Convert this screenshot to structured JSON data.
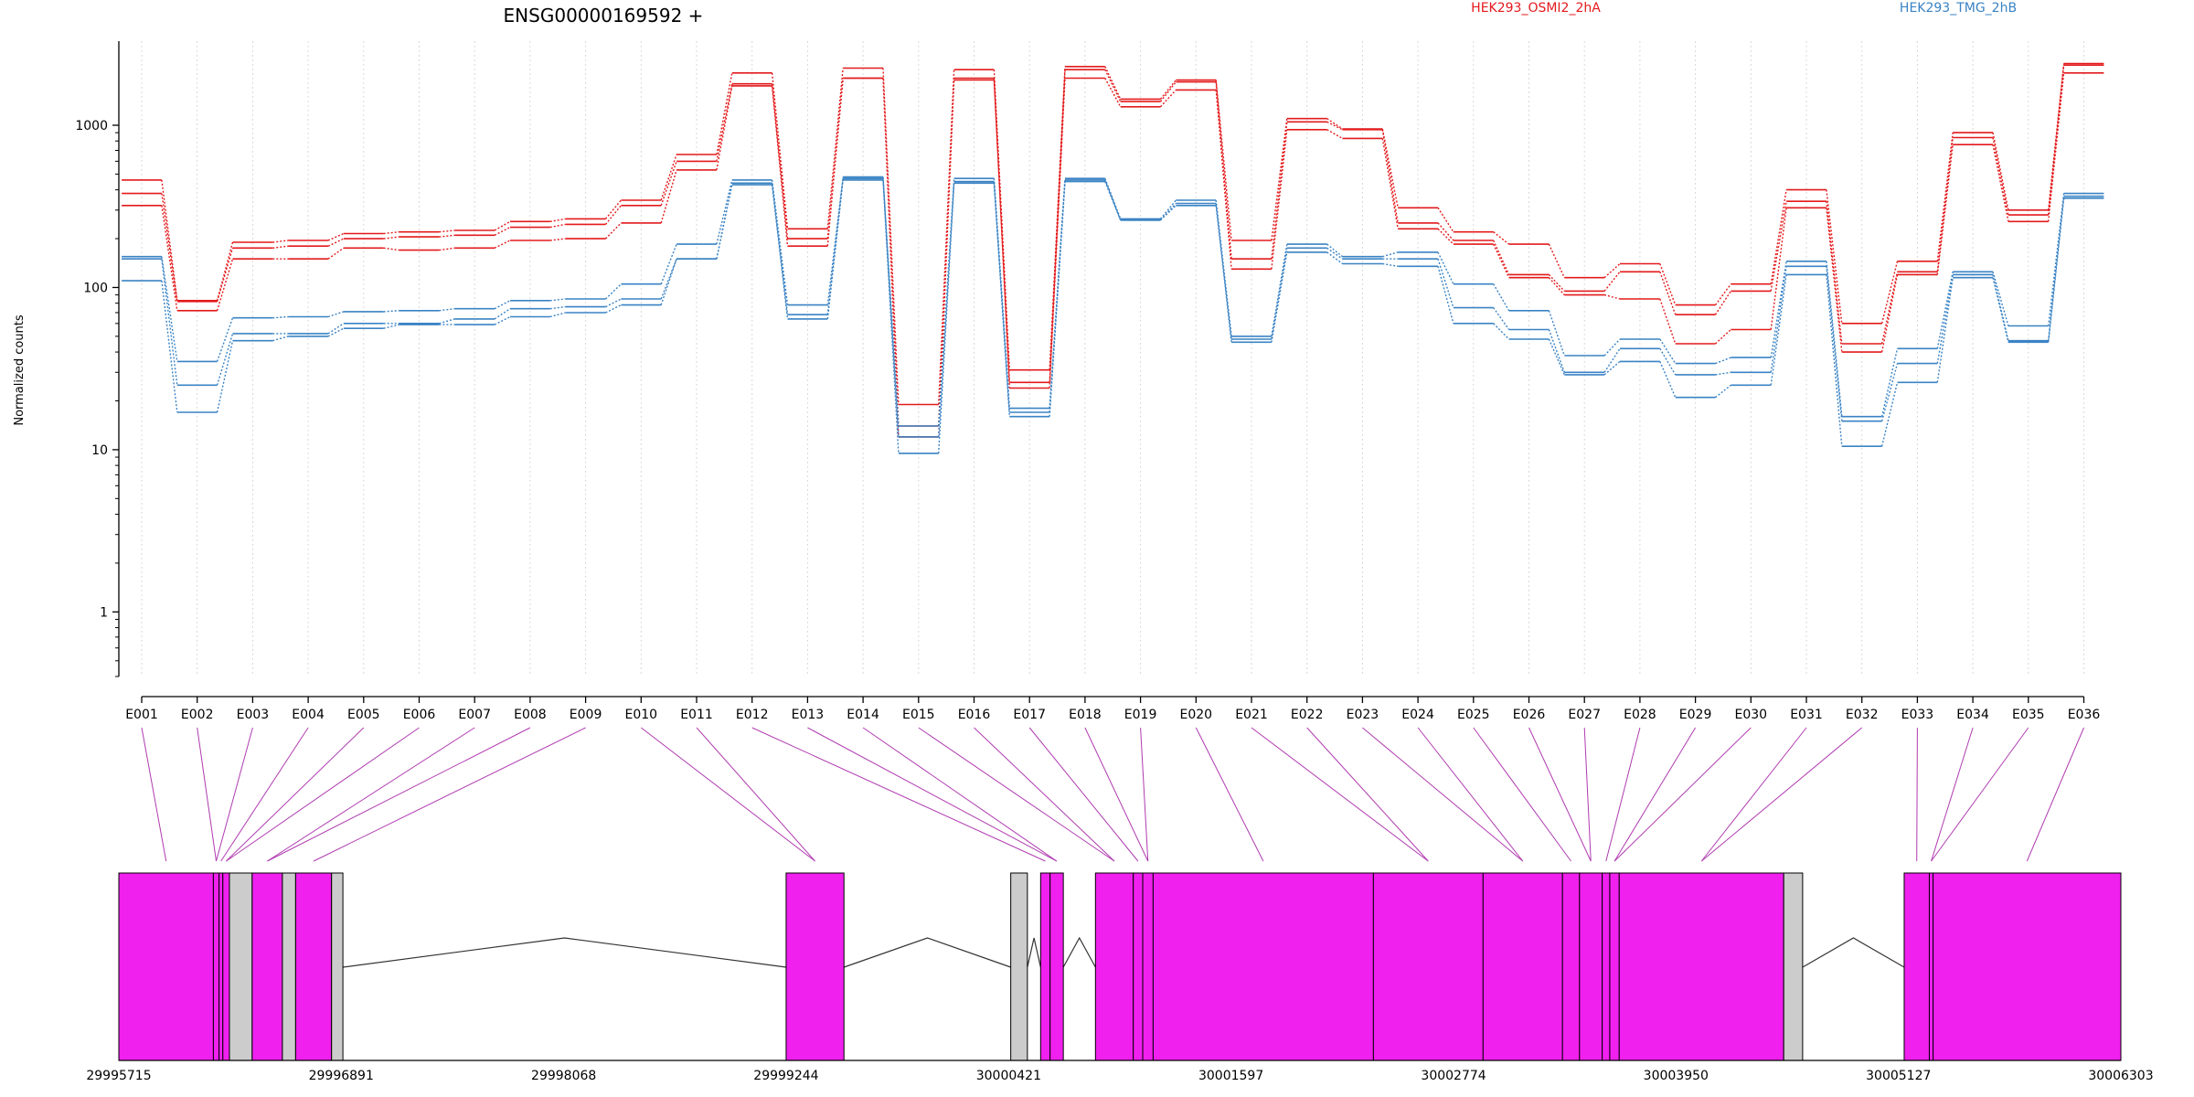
{
  "chart_data": [
    {
      "type": "line",
      "title": "ENSG00000169592 +",
      "ylabel": "Normalized counts",
      "yscale": "log",
      "ylim": [
        0.4,
        3300
      ],
      "yticks": [
        1,
        10,
        100,
        1000
      ],
      "ytick_labels": [
        "1",
        "10",
        "100",
        "1000"
      ],
      "categories": [
        "E001",
        "E002",
        "E003",
        "E004",
        "E005",
        "E006",
        "E007",
        "E008",
        "E009",
        "E010",
        "E011",
        "E012",
        "E013",
        "E014",
        "E015",
        "E016",
        "E017",
        "E018",
        "E019",
        "E020",
        "E021",
        "E022",
        "E023",
        "E024",
        "E025",
        "E026",
        "E027",
        "E028",
        "E029",
        "E030",
        "E031",
        "E032",
        "E033",
        "E034",
        "E035",
        "E036"
      ],
      "grid": "vertical dotted",
      "legend": [
        {
          "name": "HEK293_OSMI2_2hA",
          "color": "#e31a1c",
          "position": "top-center-right"
        },
        {
          "name": "HEK293_TMG_2hB",
          "color": "#3a83c4",
          "position": "top-right"
        }
      ],
      "groups": [
        {
          "name": "HEK293_OSMI2_2hA",
          "color": "#e31a1c",
          "series": [
            {
              "values": [
                460,
                83,
                190,
                195,
                215,
                220,
                225,
                255,
                265,
                345,
                660,
                2100,
                230,
                2250,
                19,
                2200,
                31,
                2300,
                1450,
                1900,
                195,
                1100,
                950,
                310,
                220,
                185,
                115,
                140,
                78,
                105,
                400,
                60,
                145,
                900,
                300,
                2400
              ]
            },
            {
              "values": [
                380,
                82,
                175,
                180,
                200,
                205,
                210,
                235,
                245,
                320,
                600,
                1800,
                200,
                1950,
                14,
                1950,
                26,
                2200,
                1400,
                1850,
                150,
                1050,
                940,
                250,
                195,
                120,
                95,
                125,
                68,
                95,
                340,
                45,
                125,
                840,
                280,
                2350
              ]
            },
            {
              "values": [
                320,
                72,
                150,
                150,
                175,
                170,
                175,
                195,
                200,
                250,
                530,
                1750,
                180,
                1950,
                12,
                1900,
                24,
                1950,
                1300,
                1650,
                130,
                940,
                830,
                230,
                185,
                115,
                90,
                85,
                45,
                55,
                310,
                40,
                120,
                760,
                255,
                2100
              ]
            }
          ]
        },
        {
          "name": "HEK293_TMG_2hB",
          "color": "#3a83c4",
          "series": [
            {
              "values": [
                155,
                35,
                65,
                66,
                71,
                72,
                74,
                83,
                85,
                105,
                185,
                460,
                78,
                480,
                14,
                470,
                18,
                470,
                265,
                345,
                50,
                185,
                155,
                165,
                105,
                72,
                38,
                48,
                34,
                37,
                145,
                16,
                42,
                125,
                58,
                380
              ]
            },
            {
              "values": [
                150,
                25,
                52,
                52,
                60,
                60,
                64,
                74,
                76,
                85,
                150,
                440,
                68,
                470,
                12,
                450,
                17,
                460,
                260,
                330,
                48,
                175,
                150,
                150,
                75,
                55,
                30,
                42,
                29,
                30,
                135,
                15,
                34,
                120,
                47,
                365
              ]
            },
            {
              "values": [
                110,
                17,
                47,
                50,
                56,
                59,
                59,
                66,
                70,
                78,
                150,
                430,
                64,
                460,
                9.5,
                440,
                16,
                450,
                260,
                320,
                46,
                165,
                140,
                135,
                60,
                48,
                29,
                35,
                21,
                25,
                120,
                10.5,
                26,
                115,
                46,
                355
              ]
            }
          ]
        }
      ]
    },
    {
      "type": "gene-model",
      "x_ticks": [
        "29995715",
        "29996891",
        "29998068",
        "29999244",
        "30000421",
        "30001597",
        "30002774",
        "30003950",
        "30005127",
        "30006303"
      ],
      "xlim": [
        29995715,
        30006303
      ],
      "exon_color_tested": "#f020ee",
      "exon_color_untested": "#cccccc",
      "blocks": [
        {
          "start": 29995715,
          "end": 29996215,
          "kind": "tested"
        },
        {
          "start": 29996215,
          "end": 29996245,
          "kind": "tested"
        },
        {
          "start": 29996245,
          "end": 29996265,
          "kind": "tested"
        },
        {
          "start": 29996265,
          "end": 29996300,
          "kind": "tested"
        },
        {
          "start": 29996300,
          "end": 29996420,
          "kind": "untested"
        },
        {
          "start": 29996420,
          "end": 29996580,
          "kind": "tested"
        },
        {
          "start": 29996580,
          "end": 29996650,
          "kind": "untested"
        },
        {
          "start": 29996650,
          "end": 29996840,
          "kind": "tested"
        },
        {
          "start": 29996840,
          "end": 29996900,
          "kind": "untested"
        },
        {
          "start": 29999244,
          "end": 29999550,
          "kind": "tested"
        },
        {
          "start": 30000432,
          "end": 30000520,
          "kind": "untested"
        },
        {
          "start": 30000590,
          "end": 30000640,
          "kind": "tested"
        },
        {
          "start": 30000640,
          "end": 30000710,
          "kind": "tested"
        },
        {
          "start": 30000880,
          "end": 30001080,
          "kind": "tested"
        },
        {
          "start": 30001080,
          "end": 30001130,
          "kind": "tested"
        },
        {
          "start": 30001130,
          "end": 30001185,
          "kind": "tested"
        },
        {
          "start": 30001185,
          "end": 30002350,
          "kind": "tested"
        },
        {
          "start": 30002350,
          "end": 30002930,
          "kind": "tested"
        },
        {
          "start": 30002930,
          "end": 30003350,
          "kind": "tested"
        },
        {
          "start": 30003350,
          "end": 30003440,
          "kind": "tested"
        },
        {
          "start": 30003440,
          "end": 30003560,
          "kind": "tested"
        },
        {
          "start": 30003560,
          "end": 30003600,
          "kind": "tested"
        },
        {
          "start": 30003600,
          "end": 30003650,
          "kind": "tested"
        },
        {
          "start": 30003650,
          "end": 30004520,
          "kind": "tested"
        },
        {
          "start": 30004520,
          "end": 30004620,
          "kind": "untested"
        },
        {
          "start": 30005157,
          "end": 30005290,
          "kind": "tested"
        },
        {
          "start": 30005290,
          "end": 30005310,
          "kind": "tested"
        },
        {
          "start": 30005310,
          "end": 30006303,
          "kind": "tested"
        }
      ],
      "introns": [
        {
          "start": 29996900,
          "end": 29999244
        },
        {
          "start": 29999550,
          "end": 30000432
        },
        {
          "start": 30000520,
          "end": 30000590
        },
        {
          "start": 30000710,
          "end": 30000880
        },
        {
          "start": 30004620,
          "end": 30005157
        }
      ]
    }
  ]
}
